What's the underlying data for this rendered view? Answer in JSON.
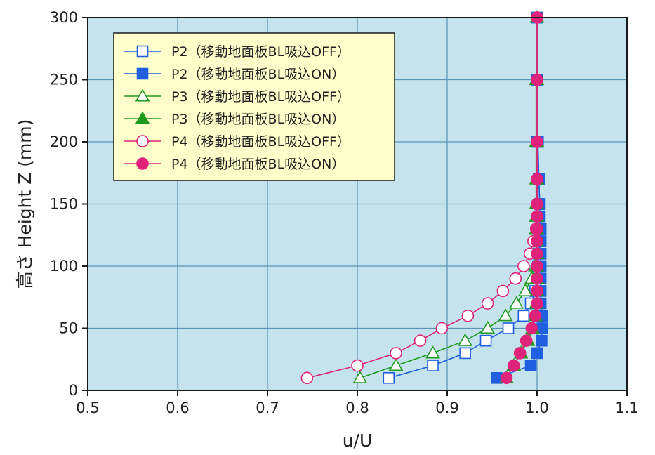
{
  "chart_data": {
    "type": "line",
    "xlabel": "u/U",
    "ylabel": "高さ Height Z (mm)",
    "xlim": [
      0.5,
      1.1
    ],
    "ylim": [
      0,
      300
    ],
    "xticks": [
      "0.5",
      "0.6",
      "0.7",
      "0.8",
      "0.9",
      "1.0",
      "1.1"
    ],
    "yticks": [
      "0",
      "50",
      "100",
      "150",
      "200",
      "250",
      "300"
    ],
    "grid": true,
    "legend_position": "top-left",
    "plot_background": "#c5e3ec",
    "series": [
      {
        "name": "P2（移動地面板BL吸込OFF）",
        "color": "#1f5fe0",
        "marker": "square",
        "filled": false,
        "points": [
          [
            0.835,
            10
          ],
          [
            0.884,
            20
          ],
          [
            0.92,
            30
          ],
          [
            0.943,
            40
          ],
          [
            0.968,
            50
          ],
          [
            0.985,
            60
          ],
          [
            0.993,
            70
          ],
          [
            0.998,
            80
          ],
          [
            1.0,
            90
          ],
          [
            1.001,
            100
          ],
          [
            1.002,
            110
          ],
          [
            1.003,
            120
          ],
          [
            1.003,
            130
          ],
          [
            1.003,
            140
          ],
          [
            1.003,
            150
          ],
          [
            1.002,
            170
          ],
          [
            1.0,
            200
          ],
          [
            1.0,
            250
          ],
          [
            1.0,
            300
          ]
        ]
      },
      {
        "name": "P2（移動地面板BL吸込ON）",
        "color": "#1f5fe0",
        "marker": "square",
        "filled": true,
        "points": [
          [
            0.955,
            10
          ],
          [
            0.993,
            20
          ],
          [
            1.0,
            30
          ],
          [
            1.005,
            40
          ],
          [
            1.006,
            50
          ],
          [
            1.006,
            60
          ],
          [
            1.004,
            70
          ],
          [
            1.004,
            80
          ],
          [
            1.004,
            90
          ],
          [
            1.004,
            100
          ],
          [
            1.004,
            110
          ],
          [
            1.004,
            120
          ],
          [
            1.004,
            130
          ],
          [
            1.003,
            140
          ],
          [
            1.003,
            150
          ],
          [
            1.002,
            170
          ],
          [
            1.001,
            200
          ],
          [
            1.0,
            250
          ],
          [
            1.0,
            300
          ]
        ]
      },
      {
        "name": "P3（移動地面板BL吸込OFF）",
        "color": "#1e9a1e",
        "marker": "triangle",
        "filled": false,
        "points": [
          [
            0.803,
            10
          ],
          [
            0.843,
            20
          ],
          [
            0.884,
            30
          ],
          [
            0.92,
            40
          ],
          [
            0.945,
            50
          ],
          [
            0.965,
            60
          ],
          [
            0.977,
            70
          ],
          [
            0.987,
            80
          ],
          [
            0.994,
            90
          ],
          [
            0.998,
            100
          ],
          [
            1.0,
            110
          ],
          [
            1.0,
            120
          ],
          [
            1.0,
            130
          ],
          [
            1.0,
            140
          ],
          [
            1.0,
            150
          ],
          [
            1.0,
            170
          ],
          [
            1.0,
            200
          ],
          [
            1.0,
            250
          ],
          [
            1.0,
            300
          ]
        ]
      },
      {
        "name": "P3（移動地面板BL吸込ON）",
        "color": "#1e9a1e",
        "marker": "triangle",
        "filled": true,
        "points": [
          [
            0.966,
            10
          ],
          [
            0.974,
            20
          ],
          [
            0.982,
            30
          ],
          [
            0.99,
            40
          ],
          [
            0.995,
            50
          ],
          [
            0.998,
            60
          ],
          [
            0.999,
            70
          ],
          [
            1.0,
            80
          ],
          [
            1.0,
            90
          ],
          [
            1.0,
            100
          ],
          [
            1.0,
            110
          ],
          [
            1.0,
            120
          ],
          [
            0.999,
            130
          ],
          [
            0.999,
            140
          ],
          [
            0.999,
            150
          ],
          [
            0.999,
            170
          ],
          [
            0.999,
            200
          ],
          [
            0.999,
            250
          ],
          [
            1.0,
            300
          ]
        ]
      },
      {
        "name": "P4（移動地面板BL吸込OFF）",
        "color": "#e0237a",
        "marker": "circle",
        "filled": false,
        "points": [
          [
            0.744,
            10
          ],
          [
            0.8,
            20
          ],
          [
            0.843,
            30
          ],
          [
            0.87,
            40
          ],
          [
            0.894,
            50
          ],
          [
            0.923,
            60
          ],
          [
            0.945,
            70
          ],
          [
            0.962,
            80
          ],
          [
            0.976,
            90
          ],
          [
            0.985,
            100
          ],
          [
            0.992,
            110
          ],
          [
            0.996,
            120
          ],
          [
            0.999,
            130
          ],
          [
            1.0,
            140
          ],
          [
            1.0,
            150
          ],
          [
            1.0,
            170
          ],
          [
            1.0,
            200
          ],
          [
            1.0,
            250
          ],
          [
            1.0,
            300
          ]
        ]
      },
      {
        "name": "P4（移動地面板BL吸込ON）",
        "color": "#e0237a",
        "marker": "circle",
        "filled": true,
        "points": [
          [
            0.966,
            10
          ],
          [
            0.974,
            20
          ],
          [
            0.981,
            30
          ],
          [
            0.988,
            40
          ],
          [
            0.994,
            50
          ],
          [
            0.998,
            60
          ],
          [
            1.0,
            70
          ],
          [
            1.0,
            80
          ],
          [
            1.0,
            90
          ],
          [
            1.0,
            100
          ],
          [
            1.0,
            110
          ],
          [
            1.0,
            120
          ],
          [
            1.0,
            130
          ],
          [
            1.0,
            140
          ],
          [
            1.0,
            150
          ],
          [
            1.0,
            170
          ],
          [
            1.0,
            200
          ],
          [
            1.0,
            250
          ],
          [
            1.0,
            300
          ]
        ]
      }
    ]
  }
}
